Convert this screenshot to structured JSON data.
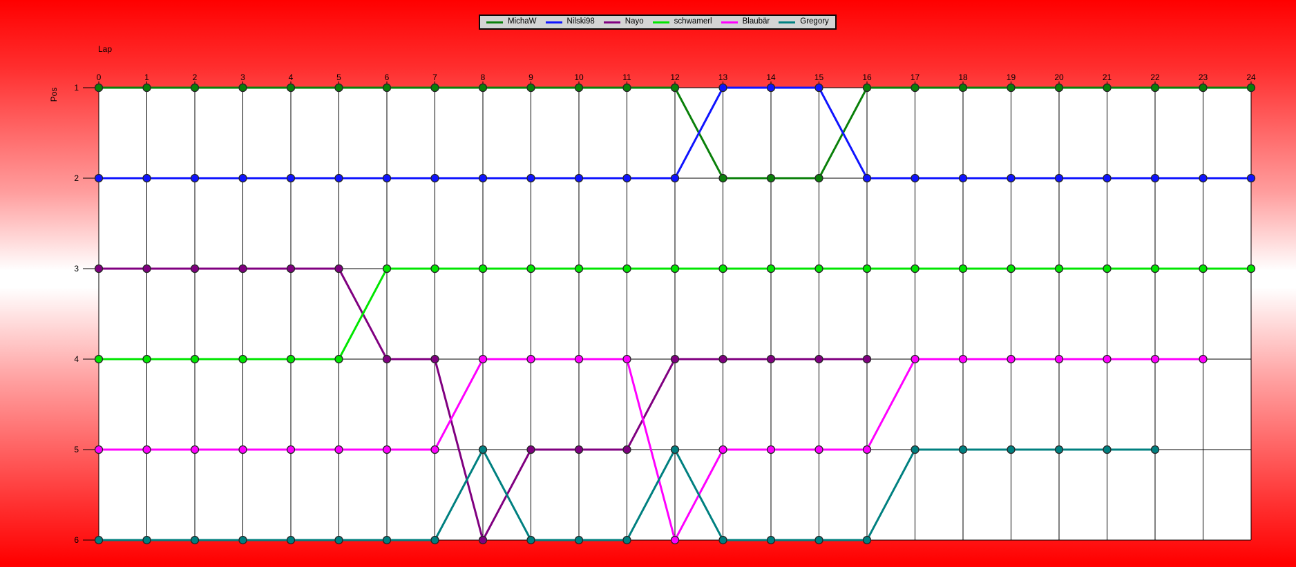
{
  "app": {
    "description": "race lap chart of driver positions per lap"
  },
  "axes": {
    "x_title": "Lap",
    "y_title": "Pos",
    "x_ticks": [
      0,
      1,
      2,
      3,
      4,
      5,
      6,
      7,
      8,
      9,
      10,
      11,
      12,
      13,
      14,
      15,
      16,
      17,
      18,
      19,
      20,
      21,
      22,
      23,
      24
    ],
    "y_ticks": [
      1,
      2,
      3,
      4,
      5,
      6
    ]
  },
  "legend": {
    "position": "top-center",
    "items": [
      "MichaW",
      "Nilski98",
      "Nayo",
      "schwamerl",
      "Blaubär",
      "Gregory"
    ]
  },
  "styles": {
    "background_edge": "#ff0000",
    "background_middle": "#ffffff",
    "plot_background": "#ffffff",
    "grid_color": "#000000",
    "text_color": "#000000",
    "legend_background": "#d4d4d4",
    "legend_border": "#0a0a0a",
    "dot_outline": "#262626"
  },
  "chart_data": {
    "type": "line",
    "title": "",
    "xlabel": "Lap",
    "ylabel": "Pos",
    "x": [
      0,
      1,
      2,
      3,
      4,
      5,
      6,
      7,
      8,
      9,
      10,
      11,
      12,
      13,
      14,
      15,
      16,
      17,
      18,
      19,
      20,
      21,
      22,
      23,
      24
    ],
    "y_ticks": [
      1,
      2,
      3,
      4,
      5,
      6
    ],
    "ylim": [
      1,
      6
    ],
    "y_axis": "inverted (position 1 at top)",
    "grid": true,
    "legend_position": "top-center",
    "series": [
      {
        "name": "MichaW",
        "color": "#0a800a",
        "positions": [
          1,
          1,
          1,
          1,
          1,
          1,
          1,
          1,
          1,
          1,
          1,
          1,
          1,
          2,
          2,
          2,
          1,
          1,
          1,
          1,
          1,
          1,
          1,
          1,
          1
        ]
      },
      {
        "name": "Nilski98",
        "color": "#0f14ff",
        "positions": [
          2,
          2,
          2,
          2,
          2,
          2,
          2,
          2,
          2,
          2,
          2,
          2,
          2,
          1,
          1,
          1,
          2,
          2,
          2,
          2,
          2,
          2,
          2,
          2,
          2
        ]
      },
      {
        "name": "Nayo",
        "color": "#800080",
        "positions": [
          3,
          3,
          3,
          3,
          3,
          3,
          4,
          4,
          6,
          5,
          5,
          5,
          4,
          4,
          4,
          4,
          4,
          null,
          null,
          null,
          null,
          null,
          null,
          null,
          null
        ]
      },
      {
        "name": "schwamerl",
        "color": "#00e600",
        "positions": [
          4,
          4,
          4,
          4,
          4,
          4,
          3,
          3,
          3,
          3,
          3,
          3,
          3,
          3,
          3,
          3,
          3,
          3,
          3,
          3,
          3,
          3,
          3,
          3,
          3
        ]
      },
      {
        "name": "Blaubär",
        "color": "#ff00ff",
        "positions": [
          5,
          5,
          5,
          5,
          5,
          5,
          5,
          5,
          4,
          4,
          4,
          4,
          6,
          5,
          5,
          5,
          5,
          4,
          4,
          4,
          4,
          4,
          4,
          4,
          null
        ]
      },
      {
        "name": "Gregory",
        "color": "#008080",
        "positions": [
          6,
          6,
          6,
          6,
          6,
          6,
          6,
          6,
          5,
          6,
          6,
          6,
          5,
          6,
          6,
          6,
          6,
          5,
          5,
          5,
          5,
          5,
          5,
          null,
          null
        ]
      }
    ]
  }
}
